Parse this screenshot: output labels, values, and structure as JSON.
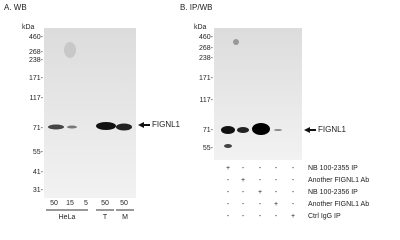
{
  "panel_a": {
    "label": "A. WB",
    "unit": "kDa",
    "markers": [
      "460-",
      "268-",
      "238-",
      "171-",
      "117-",
      "71-",
      "55-",
      "41-",
      "31-"
    ],
    "lanes": [
      "50",
      "15",
      "5",
      "50",
      "50"
    ],
    "groups": [
      "HeLa",
      "T",
      "M"
    ],
    "target": "FIGNL1"
  },
  "panel_b": {
    "label": "B. IP/WB",
    "unit": "kDa",
    "markers": [
      "460-",
      "268-",
      "238-",
      "171-",
      "117-",
      "71-",
      "55-"
    ],
    "target": "FIGNL1",
    "rows": [
      {
        "signs": [
          "+",
          "-",
          "-",
          "-",
          "-"
        ],
        "label": "NB 100-2355 IP"
      },
      {
        "signs": [
          "-",
          "+",
          "-",
          "-",
          "-"
        ],
        "label": "Another FIGNL1 Ab"
      },
      {
        "signs": [
          "-",
          "-",
          "+",
          "-",
          "-"
        ],
        "label": "NB 100-2356 IP"
      },
      {
        "signs": [
          "-",
          "-",
          "-",
          "+",
          "-"
        ],
        "label": "Another FIGNL1 Ab"
      },
      {
        "signs": [
          "-",
          "-",
          "-",
          "-",
          "+"
        ],
        "label": "Ctrl IgG IP"
      }
    ]
  }
}
